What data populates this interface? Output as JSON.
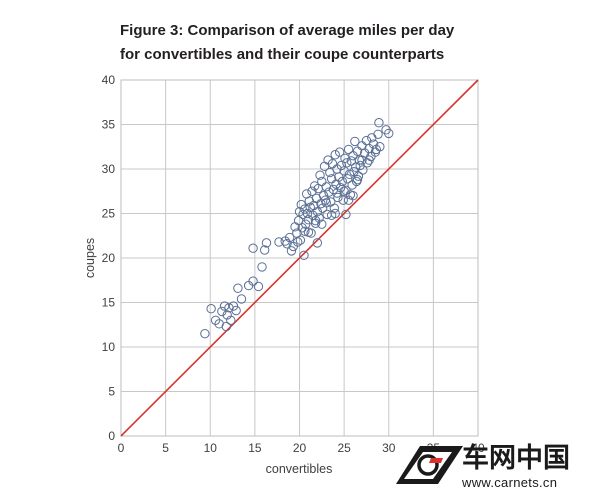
{
  "chart_data": {
    "type": "scatter",
    "title_line1": "Figure 3: Comparison of average miles per day",
    "title_line2": "for convertibles and their coupe counterparts",
    "xlabel": "convertibles",
    "ylabel": "coupes",
    "xlim": [
      0,
      40
    ],
    "ylim": [
      0,
      40
    ],
    "xticks": [
      0,
      5,
      10,
      15,
      20,
      25,
      30,
      35,
      40
    ],
    "yticks": [
      0,
      5,
      10,
      15,
      20,
      25,
      30,
      35,
      40
    ],
    "grid": true,
    "reference_line": {
      "type": "y=x",
      "color": "#d9332c"
    },
    "marker_color": "#5a6f95",
    "points": [
      [
        9.4,
        11.5
      ],
      [
        10.1,
        14.3
      ],
      [
        10.6,
        13.0
      ],
      [
        11.0,
        12.6
      ],
      [
        11.3,
        14.0
      ],
      [
        11.6,
        14.6
      ],
      [
        11.8,
        12.3
      ],
      [
        11.9,
        13.6
      ],
      [
        12.1,
        14.4
      ],
      [
        12.3,
        13.0
      ],
      [
        12.6,
        14.6
      ],
      [
        12.9,
        14.1
      ],
      [
        13.1,
        16.6
      ],
      [
        13.5,
        15.4
      ],
      [
        14.3,
        16.9
      ],
      [
        14.8,
        17.4
      ],
      [
        15.4,
        16.8
      ],
      [
        15.8,
        19.0
      ],
      [
        14.8,
        21.1
      ],
      [
        16.1,
        20.9
      ],
      [
        16.3,
        21.7
      ],
      [
        17.7,
        21.8
      ],
      [
        18.4,
        21.9
      ],
      [
        18.6,
        21.6
      ],
      [
        18.9,
        22.3
      ],
      [
        19.1,
        20.8
      ],
      [
        19.3,
        21.3
      ],
      [
        19.5,
        23.5
      ],
      [
        19.7,
        22.8
      ],
      [
        19.9,
        24.2
      ],
      [
        19.8,
        21.8
      ],
      [
        20.1,
        22.0
      ],
      [
        20.2,
        26.0
      ],
      [
        20.3,
        23.4
      ],
      [
        20.4,
        24.9
      ],
      [
        20.5,
        20.3
      ],
      [
        20.6,
        25.5
      ],
      [
        20.7,
        23.8
      ],
      [
        20.8,
        27.2
      ],
      [
        20.9,
        25.0
      ],
      [
        21.0,
        24.3
      ],
      [
        21.1,
        26.4
      ],
      [
        21.2,
        25.7
      ],
      [
        21.3,
        22.8
      ],
      [
        21.4,
        27.5
      ],
      [
        21.5,
        24.8
      ],
      [
        21.6,
        25.9
      ],
      [
        21.7,
        28.1
      ],
      [
        21.8,
        23.9
      ],
      [
        21.9,
        26.7
      ],
      [
        22.0,
        25.2
      ],
      [
        22.1,
        27.8
      ],
      [
        22.2,
        24.5
      ],
      [
        22.3,
        29.3
      ],
      [
        22.4,
        26.1
      ],
      [
        22.5,
        28.6
      ],
      [
        22.6,
        25.6
      ],
      [
        22.7,
        27.0
      ],
      [
        22.8,
        30.3
      ],
      [
        22.9,
        26.5
      ],
      [
        23.0,
        28.0
      ],
      [
        23.1,
        24.9
      ],
      [
        23.2,
        31.0
      ],
      [
        23.3,
        27.4
      ],
      [
        23.4,
        29.6
      ],
      [
        23.5,
        26.3
      ],
      [
        23.6,
        28.9
      ],
      [
        23.7,
        30.6
      ],
      [
        23.8,
        27.7
      ],
      [
        23.9,
        25.6
      ],
      [
        24.0,
        31.6
      ],
      [
        24.1,
        28.3
      ],
      [
        24.2,
        30.0
      ],
      [
        24.3,
        26.8
      ],
      [
        24.4,
        29.1
      ],
      [
        24.5,
        31.9
      ],
      [
        24.6,
        27.9
      ],
      [
        24.7,
        30.4
      ],
      [
        24.8,
        28.6
      ],
      [
        24.9,
        26.5
      ],
      [
        25.0,
        29.8
      ],
      [
        25.1,
        31.2
      ],
      [
        25.2,
        27.6
      ],
      [
        25.3,
        30.7
      ],
      [
        25.4,
        28.9
      ],
      [
        25.5,
        32.2
      ],
      [
        25.6,
        29.4
      ],
      [
        25.7,
        27.1
      ],
      [
        25.8,
        30.9
      ],
      [
        25.9,
        28.2
      ],
      [
        26.0,
        31.5
      ],
      [
        26.1,
        29.7
      ],
      [
        26.2,
        33.1
      ],
      [
        26.3,
        30.2
      ],
      [
        26.4,
        28.6
      ],
      [
        26.5,
        32.0
      ],
      [
        26.6,
        29.2
      ],
      [
        26.7,
        31.0
      ],
      [
        26.8,
        30.4
      ],
      [
        27.0,
        32.6
      ],
      [
        27.1,
        29.9
      ],
      [
        27.3,
        31.8
      ],
      [
        27.5,
        33.2
      ],
      [
        27.6,
        30.7
      ],
      [
        27.8,
        32.3
      ],
      [
        28.0,
        31.4
      ],
      [
        28.1,
        33.5
      ],
      [
        28.3,
        32.8
      ],
      [
        28.5,
        31.9
      ],
      [
        28.8,
        33.9
      ],
      [
        29.0,
        32.5
      ],
      [
        28.9,
        35.2
      ],
      [
        29.7,
        34.4
      ],
      [
        30.0,
        34.0
      ],
      [
        20.0,
        25.2
      ],
      [
        21.0,
        22.9
      ],
      [
        22.0,
        21.7
      ],
      [
        23.0,
        26.2
      ],
      [
        24.0,
        25.0
      ],
      [
        25.0,
        27.5
      ],
      [
        26.0,
        27.0
      ],
      [
        27.0,
        31.0
      ],
      [
        26.5,
        28.8
      ],
      [
        27.8,
        31.0
      ],
      [
        28.6,
        32.2
      ],
      [
        24.2,
        27.3
      ],
      [
        22.5,
        23.8
      ],
      [
        23.6,
        24.8
      ],
      [
        21.8,
        24.2
      ],
      [
        20.6,
        23.0
      ],
      [
        25.5,
        26.5
      ],
      [
        25.2,
        24.9
      ]
    ]
  },
  "watermark": {
    "chinese": "车网中国",
    "url": "www.carnets.cn"
  }
}
